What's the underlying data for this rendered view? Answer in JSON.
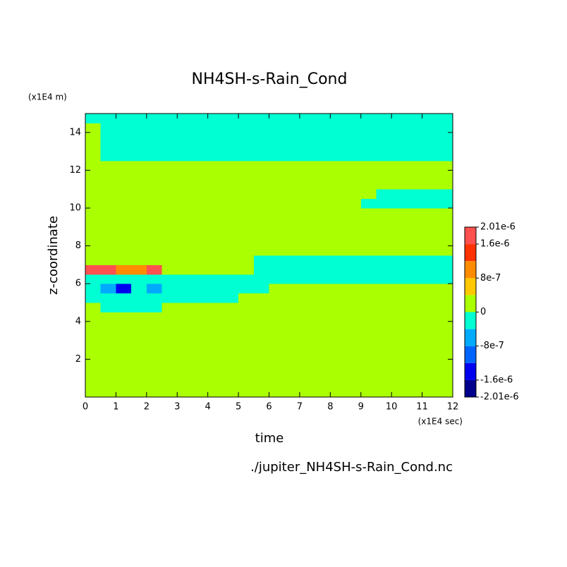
{
  "chart_data": {
    "type": "contour",
    "title": "NH4SH-s-Rain_Cond",
    "x_label": "time",
    "x_unit": "(x1E4 sec)",
    "y_label": "z-coordinate",
    "y_unit": "(x1E4 m)",
    "source": "./jupiter_NH4SH-s-Rain_Cond.nc",
    "xlim": [
      0,
      12
    ],
    "xticks": [
      0,
      1,
      2,
      3,
      4,
      5,
      6,
      7,
      8,
      9,
      10,
      11,
      12
    ],
    "ylim": [
      0,
      15
    ],
    "yticks": [
      2,
      4,
      6,
      8,
      10,
      12,
      14
    ],
    "x": [
      0.25,
      0.75,
      1.25,
      1.75,
      2.25,
      2.75,
      3.25,
      3.75,
      4.25,
      4.75,
      5.25,
      5.75,
      6.25,
      6.75,
      7.25,
      7.75,
      8.25,
      8.75,
      9.25,
      9.75,
      10.25,
      10.75,
      11.25,
      11.75
    ],
    "y": [
      0.25,
      0.75,
      1.25,
      1.75,
      2.25,
      2.75,
      3.25,
      3.75,
      4.25,
      4.75,
      5.25,
      5.75,
      6.25,
      6.75,
      7.25,
      7.75,
      8.25,
      8.75,
      9.25,
      9.75,
      10.25,
      10.75,
      11.25,
      11.75,
      12.25,
      12.75,
      13.25,
      13.75,
      14.25,
      14.75
    ],
    "levels": [
      -2.01e-06,
      -1.6e-06,
      -1.2e-06,
      -8e-07,
      -4e-07,
      0,
      4e-07,
      8e-07,
      1.2e-06,
      1.6e-06,
      2.01e-06
    ],
    "colors": [
      "#00008c",
      "#0000f0",
      "#0064ff",
      "#00aaff",
      "#00ffd2",
      "#aaff00",
      "#ffc800",
      "#ff8c00",
      "#ff3200",
      "#ff5050"
    ],
    "colorbar_ticks": [
      {
        "value": 2.01e-06,
        "label": "2.01e-6"
      },
      {
        "value": 1.6e-06,
        "label": "1.6e-6"
      },
      {
        "value": 8e-07,
        "label": "8e-7"
      },
      0,
      {
        "value": -8e-07,
        "label": "-8e-7"
      },
      {
        "value": -1.6e-06,
        "label": "-1.6e-6"
      },
      {
        "value": -2.01e-06,
        "label": "-2.01e-6"
      }
    ],
    "z": [
      [
        1e-07,
        1e-07,
        1e-07,
        1e-07,
        1e-07,
        1e-07,
        1e-07,
        1e-07,
        1e-07,
        1e-07,
        1e-07,
        1e-07,
        1e-07,
        1e-07,
        1e-07,
        1e-07,
        1e-07,
        1e-07,
        1e-07,
        1e-07,
        1e-07,
        1e-07,
        1e-07,
        1e-07
      ],
      [
        1e-07,
        1e-07,
        1e-07,
        1e-07,
        1e-07,
        1e-07,
        1e-07,
        1e-07,
        1e-07,
        1e-07,
        1e-07,
        1e-07,
        1e-07,
        1e-07,
        1e-07,
        1e-07,
        1e-07,
        1e-07,
        1e-07,
        1e-07,
        1e-07,
        1e-07,
        1e-07,
        1e-07
      ],
      [
        1e-07,
        1e-07,
        1e-07,
        1e-07,
        1e-07,
        1e-07,
        1e-07,
        1e-07,
        1e-07,
        1e-07,
        1e-07,
        1e-07,
        1e-07,
        1e-07,
        1e-07,
        1e-07,
        1e-07,
        1e-07,
        1e-07,
        1e-07,
        1e-07,
        1e-07,
        1e-07,
        1e-07
      ],
      [
        1e-07,
        1e-07,
        1e-07,
        1e-07,
        1e-07,
        1e-07,
        1e-07,
        1e-07,
        1e-07,
        1e-07,
        1e-07,
        1e-07,
        1e-07,
        1e-07,
        1e-07,
        1e-07,
        1e-07,
        1e-07,
        1e-07,
        1e-07,
        1e-07,
        1e-07,
        1e-07,
        1e-07
      ],
      [
        1e-07,
        1e-07,
        1e-07,
        1e-07,
        1e-07,
        1e-07,
        1e-07,
        1e-07,
        1e-07,
        1e-07,
        1e-07,
        1e-07,
        1e-07,
        1e-07,
        1e-07,
        1e-07,
        1e-07,
        1e-07,
        1e-07,
        1e-07,
        1e-07,
        1e-07,
        1e-07,
        1e-07
      ],
      [
        1e-07,
        1e-07,
        1e-07,
        1e-07,
        1e-07,
        1e-07,
        1e-07,
        1e-07,
        1e-07,
        1e-07,
        1e-07,
        1e-07,
        1e-07,
        1e-07,
        1e-07,
        1e-07,
        1e-07,
        1e-07,
        1e-07,
        1e-07,
        1e-07,
        1e-07,
        1e-07,
        1e-07
      ],
      [
        1e-07,
        1e-07,
        1e-07,
        1e-07,
        1e-07,
        1e-07,
        1e-07,
        1e-07,
        1e-07,
        1e-07,
        1e-07,
        1e-07,
        1e-07,
        1e-07,
        1e-07,
        1e-07,
        1e-07,
        1e-07,
        1e-07,
        1e-07,
        1e-07,
        1e-07,
        1e-07,
        1e-07
      ],
      [
        1e-07,
        1e-07,
        1e-07,
        1e-07,
        1e-07,
        1e-07,
        1e-07,
        1e-07,
        1e-07,
        1e-07,
        1e-07,
        1e-07,
        1e-07,
        1e-07,
        1e-07,
        1e-07,
        1e-07,
        1e-07,
        1e-07,
        1e-07,
        1e-07,
        1e-07,
        1e-07,
        1e-07
      ],
      [
        1e-07,
        1e-07,
        1e-07,
        1e-07,
        1e-07,
        1e-07,
        1e-07,
        1e-07,
        1e-07,
        1e-07,
        1e-07,
        1e-07,
        1e-07,
        1e-07,
        1e-07,
        1e-07,
        1e-07,
        1e-07,
        1e-07,
        1e-07,
        1e-07,
        1e-07,
        1e-07,
        1e-07
      ],
      [
        1e-07,
        -2e-07,
        -2e-07,
        -2e-07,
        -2e-07,
        1e-07,
        1e-07,
        1e-07,
        1e-07,
        1e-07,
        1e-07,
        1e-07,
        1e-07,
        1e-07,
        1e-07,
        1e-07,
        1e-07,
        1e-07,
        1e-07,
        1e-07,
        1e-07,
        1e-07,
        1e-07,
        1e-07
      ],
      [
        -2e-07,
        -2e-07,
        -2e-07,
        -2e-07,
        -2e-07,
        -2e-07,
        -2e-07,
        -2e-07,
        -2e-07,
        -2e-07,
        1e-07,
        1e-07,
        1e-07,
        1e-07,
        1e-07,
        1e-07,
        1e-07,
        1e-07,
        1e-07,
        1e-07,
        1e-07,
        1e-07,
        1e-07,
        1e-07
      ],
      [
        -2e-07,
        -6e-07,
        -1.4e-06,
        -2e-07,
        -6e-07,
        -2e-07,
        -2e-07,
        -2e-07,
        -2e-07,
        -2e-07,
        -2e-07,
        -2e-07,
        1e-07,
        1e-07,
        1e-07,
        1e-07,
        1e-07,
        1e-07,
        1e-07,
        1e-07,
        1e-07,
        1e-07,
        1e-07,
        1e-07
      ],
      [
        -2e-07,
        -2e-07,
        -2e-07,
        -2e-07,
        -2e-07,
        -2e-07,
        -2e-07,
        -2e-07,
        -2e-07,
        -2e-07,
        -2e-07,
        -2e-07,
        -2e-07,
        -2e-07,
        -2e-07,
        -2e-07,
        -2e-07,
        -2e-07,
        -2e-07,
        -2e-07,
        -2e-07,
        -2e-07,
        -2e-07,
        -2e-07
      ],
      [
        1.8e-06,
        1.8e-06,
        1e-06,
        1e-06,
        1.8e-06,
        1e-07,
        1e-07,
        1e-07,
        1e-07,
        1e-07,
        1e-07,
        -2e-07,
        -2e-07,
        -2e-07,
        -2e-07,
        -2e-07,
        -2e-07,
        -2e-07,
        -2e-07,
        -2e-07,
        -2e-07,
        -2e-07,
        -2e-07,
        -2e-07
      ],
      [
        1e-07,
        1e-07,
        1e-07,
        1e-07,
        1e-07,
        1e-07,
        1e-07,
        1e-07,
        1e-07,
        1e-07,
        1e-07,
        -2e-07,
        -2e-07,
        -2e-07,
        -2e-07,
        -2e-07,
        -2e-07,
        -2e-07,
        -2e-07,
        -2e-07,
        -2e-07,
        -2e-07,
        -2e-07,
        -2e-07
      ],
      [
        1e-07,
        1e-07,
        1e-07,
        1e-07,
        1e-07,
        1e-07,
        1e-07,
        1e-07,
        1e-07,
        1e-07,
        1e-07,
        1e-07,
        1e-07,
        1e-07,
        1e-07,
        1e-07,
        1e-07,
        1e-07,
        1e-07,
        1e-07,
        1e-07,
        1e-07,
        1e-07,
        1e-07
      ],
      [
        1e-07,
        1e-07,
        1e-07,
        1e-07,
        1e-07,
        1e-07,
        1e-07,
        1e-07,
        1e-07,
        1e-07,
        1e-07,
        1e-07,
        1e-07,
        1e-07,
        1e-07,
        1e-07,
        1e-07,
        1e-07,
        1e-07,
        1e-07,
        1e-07,
        1e-07,
        1e-07,
        1e-07
      ],
      [
        1e-07,
        1e-07,
        1e-07,
        1e-07,
        1e-07,
        1e-07,
        1e-07,
        1e-07,
        1e-07,
        1e-07,
        1e-07,
        1e-07,
        1e-07,
        1e-07,
        1e-07,
        1e-07,
        1e-07,
        1e-07,
        1e-07,
        1e-07,
        1e-07,
        1e-07,
        1e-07,
        1e-07
      ],
      [
        1e-07,
        1e-07,
        1e-07,
        1e-07,
        1e-07,
        1e-07,
        1e-07,
        1e-07,
        1e-07,
        1e-07,
        1e-07,
        1e-07,
        1e-07,
        1e-07,
        1e-07,
        1e-07,
        1e-07,
        1e-07,
        1e-07,
        1e-07,
        1e-07,
        1e-07,
        1e-07,
        1e-07
      ],
      [
        1e-07,
        1e-07,
        1e-07,
        1e-07,
        1e-07,
        1e-07,
        1e-07,
        1e-07,
        1e-07,
        1e-07,
        1e-07,
        1e-07,
        1e-07,
        1e-07,
        1e-07,
        1e-07,
        1e-07,
        1e-07,
        1e-07,
        1e-07,
        1e-07,
        1e-07,
        1e-07,
        1e-07
      ],
      [
        1e-07,
        1e-07,
        1e-07,
        1e-07,
        1e-07,
        1e-07,
        1e-07,
        1e-07,
        1e-07,
        1e-07,
        1e-07,
        1e-07,
        1e-07,
        1e-07,
        1e-07,
        1e-07,
        1e-07,
        1e-07,
        -2e-07,
        -2e-07,
        -2e-07,
        -2e-07,
        -2e-07,
        -2e-07
      ],
      [
        1e-07,
        1e-07,
        1e-07,
        1e-07,
        1e-07,
        1e-07,
        1e-07,
        1e-07,
        1e-07,
        1e-07,
        1e-07,
        1e-07,
        1e-07,
        1e-07,
        1e-07,
        1e-07,
        1e-07,
        1e-07,
        1e-07,
        -2e-07,
        -2e-07,
        -2e-07,
        -2e-07,
        -2e-07
      ],
      [
        1e-07,
        1e-07,
        1e-07,
        1e-07,
        1e-07,
        1e-07,
        1e-07,
        1e-07,
        1e-07,
        1e-07,
        1e-07,
        1e-07,
        1e-07,
        1e-07,
        1e-07,
        1e-07,
        1e-07,
        1e-07,
        1e-07,
        1e-07,
        1e-07,
        1e-07,
        1e-07,
        1e-07
      ],
      [
        1e-07,
        1e-07,
        1e-07,
        1e-07,
        1e-07,
        1e-07,
        1e-07,
        1e-07,
        1e-07,
        1e-07,
        1e-07,
        1e-07,
        1e-07,
        1e-07,
        1e-07,
        1e-07,
        1e-07,
        1e-07,
        1e-07,
        1e-07,
        1e-07,
        1e-07,
        1e-07,
        1e-07
      ],
      [
        1e-07,
        1e-07,
        1e-07,
        1e-07,
        1e-07,
        1e-07,
        1e-07,
        1e-07,
        1e-07,
        1e-07,
        1e-07,
        1e-07,
        1e-07,
        1e-07,
        1e-07,
        1e-07,
        1e-07,
        1e-07,
        1e-07,
        1e-07,
        1e-07,
        1e-07,
        1e-07,
        1e-07
      ],
      [
        1e-07,
        -2e-07,
        -2e-07,
        -2e-07,
        -2e-07,
        -2e-07,
        -2e-07,
        -2e-07,
        -2e-07,
        -2e-07,
        -2e-07,
        -2e-07,
        -2e-07,
        -2e-07,
        -2e-07,
        -2e-07,
        -2e-07,
        -2e-07,
        -2e-07,
        -2e-07,
        -2e-07,
        -2e-07,
        -2e-07,
        -2e-07
      ],
      [
        1e-07,
        -2e-07,
        -2e-07,
        -2e-07,
        -2e-07,
        -2e-07,
        -2e-07,
        -2e-07,
        -2e-07,
        -2e-07,
        -2e-07,
        -2e-07,
        -2e-07,
        -2e-07,
        -2e-07,
        -2e-07,
        -2e-07,
        -2e-07,
        -2e-07,
        -2e-07,
        -2e-07,
        -2e-07,
        -2e-07,
        -2e-07
      ],
      [
        1e-07,
        -2e-07,
        -2e-07,
        -2e-07,
        -2e-07,
        -2e-07,
        -2e-07,
        -2e-07,
        -2e-07,
        -2e-07,
        -2e-07,
        -2e-07,
        -2e-07,
        -2e-07,
        -2e-07,
        -2e-07,
        -2e-07,
        -2e-07,
        -2e-07,
        -2e-07,
        -2e-07,
        -2e-07,
        -2e-07,
        -2e-07
      ],
      [
        1e-07,
        -2e-07,
        -2e-07,
        -2e-07,
        -2e-07,
        -2e-07,
        -2e-07,
        -2e-07,
        -2e-07,
        -2e-07,
        -2e-07,
        -2e-07,
        -2e-07,
        -2e-07,
        -2e-07,
        -2e-07,
        -2e-07,
        -2e-07,
        -2e-07,
        -2e-07,
        -2e-07,
        -2e-07,
        -2e-07,
        -2e-07
      ],
      [
        -2e-07,
        -2e-07,
        -2e-07,
        -2e-07,
        -2e-07,
        -2e-07,
        -2e-07,
        -2e-07,
        -2e-07,
        -2e-07,
        -2e-07,
        -2e-07,
        -2e-07,
        -2e-07,
        -2e-07,
        -2e-07,
        -2e-07,
        -2e-07,
        -2e-07,
        -2e-07,
        -2e-07,
        -2e-07,
        -2e-07,
        -2e-07
      ]
    ]
  }
}
